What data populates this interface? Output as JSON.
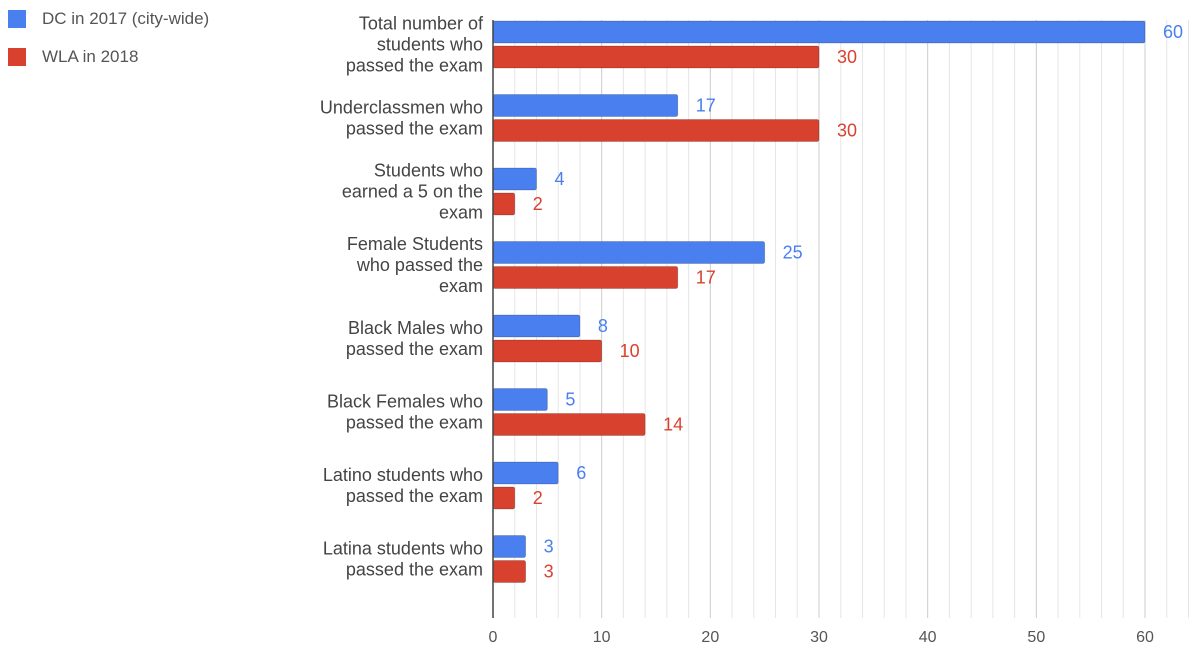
{
  "chart_data": {
    "type": "bar",
    "orientation": "horizontal",
    "categories": [
      [
        "Total number of",
        "students who",
        "passed the exam"
      ],
      [
        "Underclassmen who",
        "passed the exam"
      ],
      [
        "Students who",
        "earned a 5 on the",
        "exam"
      ],
      [
        "Female Students",
        "who passed the",
        "exam"
      ],
      [
        "Black Males who",
        "passed the exam"
      ],
      [
        "Black Females who",
        "passed the exam"
      ],
      [
        "Latino students who",
        "passed the exam"
      ],
      [
        "Latina students who",
        "passed the exam"
      ]
    ],
    "series": [
      {
        "name": "DC in 2017 (city-wide)",
        "color": "#4a7ff0",
        "values": [
          60,
          17,
          4,
          25,
          8,
          5,
          6,
          3
        ]
      },
      {
        "name": "WLA in 2018",
        "color": "#d9412f",
        "values": [
          30,
          30,
          2,
          17,
          10,
          14,
          2,
          3
        ]
      }
    ],
    "xlim": [
      0,
      64
    ],
    "xticks": [
      0,
      10,
      20,
      30,
      40,
      50,
      60
    ],
    "minor_grid_step": 2,
    "grid": true,
    "data_labels": true,
    "legend_position": "top-left"
  }
}
